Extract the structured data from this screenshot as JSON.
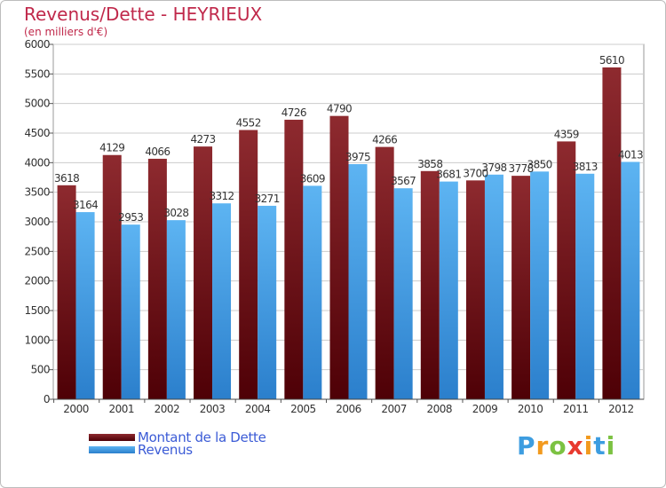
{
  "title": "Revenus/Dette - HEYRIEUX",
  "subtitle": "(en milliers d'€)",
  "colors": {
    "dette": "#6b0c12",
    "revenus": "#3f9be8",
    "title": "#c0294b",
    "legend_text": "#3b5bd6"
  },
  "chart_data": {
    "type": "bar",
    "title": "Revenus/Dette - HEYRIEUX",
    "ylabel": "(en milliers d'€)",
    "xlabel": "",
    "ylim": [
      0,
      6000
    ],
    "yticks": [
      0,
      500,
      1000,
      1500,
      2000,
      2500,
      3000,
      3500,
      4000,
      4500,
      5000,
      5500,
      6000
    ],
    "grid": true,
    "categories": [
      "2000",
      "2001",
      "2002",
      "2003",
      "2004",
      "2005",
      "2006",
      "2007",
      "2008",
      "2009",
      "2010",
      "2011",
      "2012"
    ],
    "series": [
      {
        "name": "Montant de la Dette",
        "values": [
          3618,
          4129,
          4066,
          4273,
          4552,
          4726,
          4790,
          4266,
          3858,
          3700,
          3778,
          4359,
          5610
        ]
      },
      {
        "name": "Revenus",
        "values": [
          3164,
          2953,
          3028,
          3312,
          3271,
          3609,
          3975,
          3567,
          3681,
          3798,
          3850,
          3813,
          4013
        ]
      }
    ],
    "legend": {
      "position": "bottom-left",
      "items": [
        "Montant de la Dette",
        "Revenus"
      ]
    }
  },
  "logo": {
    "letters": [
      "P",
      "r",
      "o",
      "x",
      "i",
      "t",
      "i"
    ],
    "colors": [
      "#3d9de0",
      "#f29a1e",
      "#7cc242",
      "#e83a2f",
      "#f29a1e",
      "#3d9de0",
      "#7cc242"
    ]
  }
}
